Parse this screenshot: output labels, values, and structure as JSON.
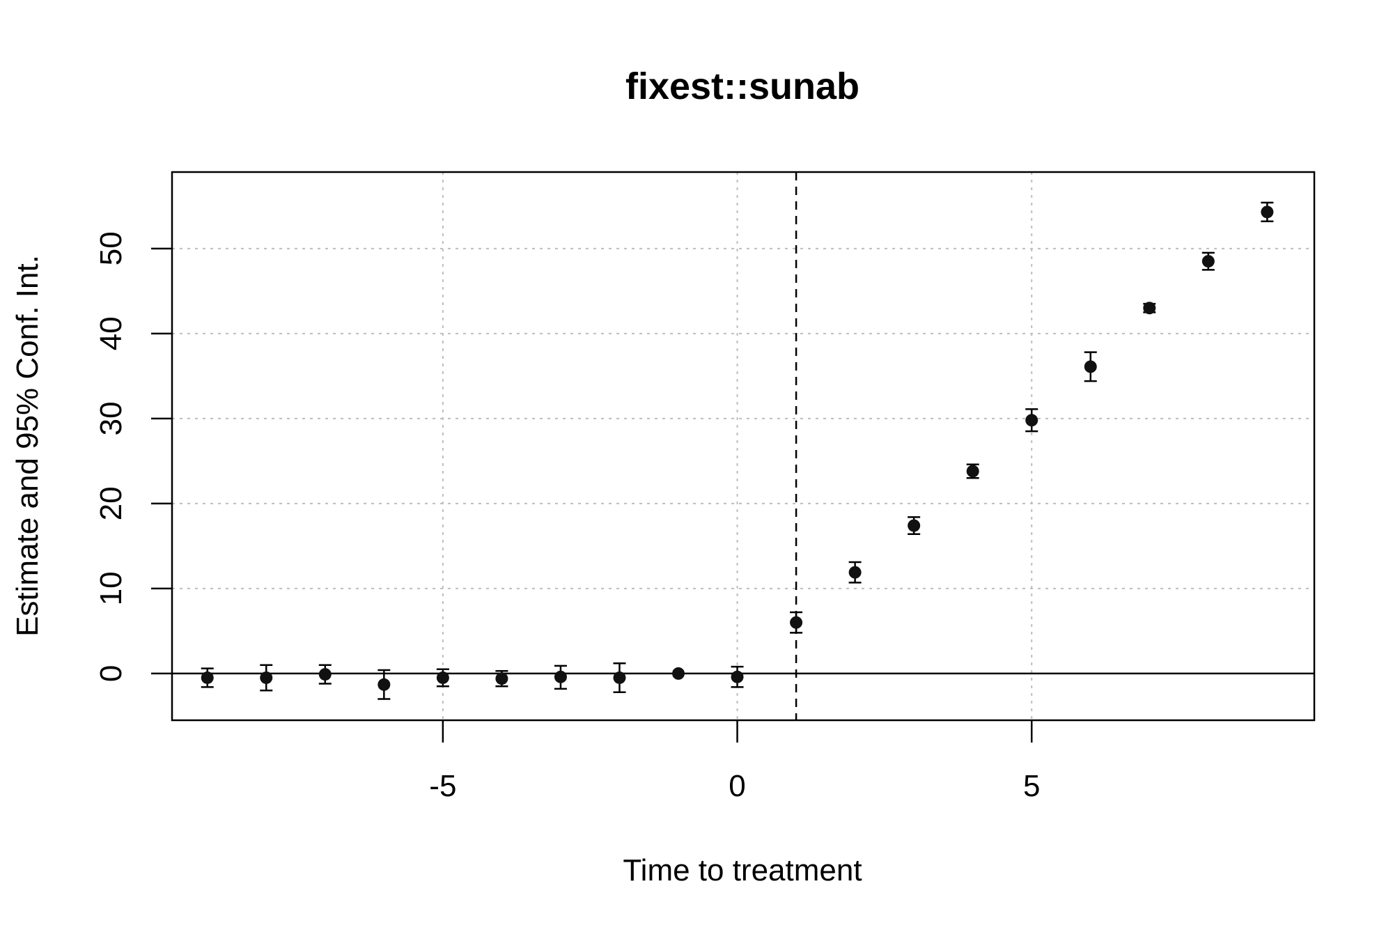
{
  "chart_data": {
    "type": "scatter",
    "title": "fixest::sunab",
    "xlabel": "Time to treatment",
    "ylabel": "Estimate and 95% Conf. Int.",
    "xlim": [
      -9.6,
      9.8
    ],
    "ylim": [
      -5.5,
      59.0
    ],
    "x_ticks": [
      -5,
      0,
      5
    ],
    "x_tick_labels": [
      "-5",
      "0",
      "5"
    ],
    "y_ticks": [
      0,
      10,
      20,
      30,
      40,
      50
    ],
    "y_tick_labels": [
      "0",
      "10",
      "20",
      "30",
      "40",
      "50"
    ],
    "grid": true,
    "reference_hline": 0,
    "reference_vline": 1,
    "series": [
      {
        "points": [
          {
            "x": -9,
            "y": -0.5,
            "lo": -1.6,
            "hi": 0.6
          },
          {
            "x": -8,
            "y": -0.5,
            "lo": -2.0,
            "hi": 1.0
          },
          {
            "x": -7,
            "y": -0.1,
            "lo": -1.2,
            "hi": 1.0
          },
          {
            "x": -6,
            "y": -1.3,
            "lo": -3.0,
            "hi": 0.4
          },
          {
            "x": -5,
            "y": -0.5,
            "lo": -1.5,
            "hi": 0.5
          },
          {
            "x": -4,
            "y": -0.6,
            "lo": -1.5,
            "hi": 0.3
          },
          {
            "x": -3,
            "y": -0.4,
            "lo": -1.8,
            "hi": 0.9
          },
          {
            "x": -2,
            "y": -0.5,
            "lo": -2.2,
            "hi": 1.2
          },
          {
            "x": -1,
            "y": 0,
            "lo": 0,
            "hi": 0
          },
          {
            "x": 0,
            "y": -0.4,
            "lo": -1.6,
            "hi": 0.8
          },
          {
            "x": 1,
            "y": 6.0,
            "lo": 4.8,
            "hi": 7.2
          },
          {
            "x": 2,
            "y": 11.9,
            "lo": 10.7,
            "hi": 13.1
          },
          {
            "x": 3,
            "y": 17.4,
            "lo": 16.4,
            "hi": 18.4
          },
          {
            "x": 4,
            "y": 23.8,
            "lo": 23.0,
            "hi": 24.6
          },
          {
            "x": 5,
            "y": 29.8,
            "lo": 28.5,
            "hi": 31.1
          },
          {
            "x": 6,
            "y": 36.1,
            "lo": 34.4,
            "hi": 37.8
          },
          {
            "x": 7,
            "y": 43.0,
            "lo": 42.5,
            "hi": 43.5
          },
          {
            "x": 8,
            "y": 48.5,
            "lo": 47.5,
            "hi": 49.5
          },
          {
            "x": 9,
            "y": 54.3,
            "lo": 53.2,
            "hi": 55.4
          }
        ]
      }
    ]
  }
}
